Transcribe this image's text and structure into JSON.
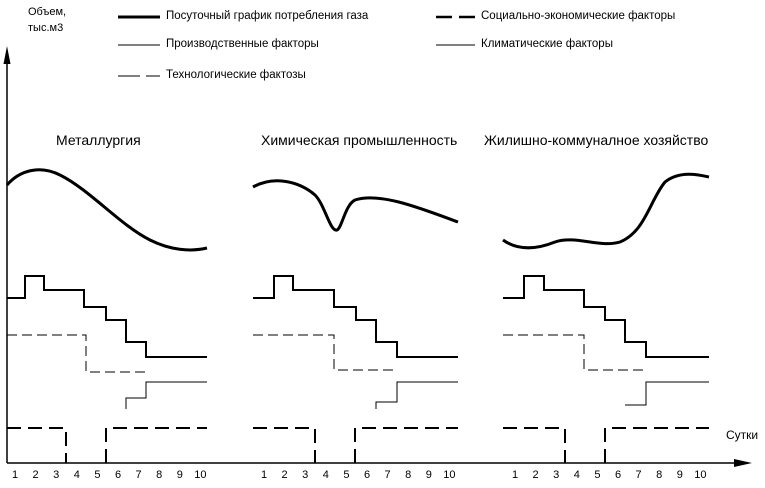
{
  "y_axis": {
    "label_line1": "Объем,",
    "label_line2": "тыс.м3"
  },
  "x_axis": {
    "label": "Сутки",
    "ticks": [
      "1",
      "2",
      "3",
      "4",
      "5",
      "6",
      "7",
      "8",
      "9",
      "10"
    ]
  },
  "legend": {
    "daily_gas": "Посуточный график потребления газа",
    "production": "Производственные факторы",
    "technological": "Технологические фактозы",
    "socio_economic": "Социально-экономические факторы",
    "climatic": "Климатические факторы"
  },
  "panels": [
    {
      "title": "Металлургия"
    },
    {
      "title": "Химическая промышленность"
    },
    {
      "title": "Жилишно-коммуналное хозяйство"
    }
  ],
  "colors": {
    "line": "#000000",
    "background": "#ffffff"
  }
}
